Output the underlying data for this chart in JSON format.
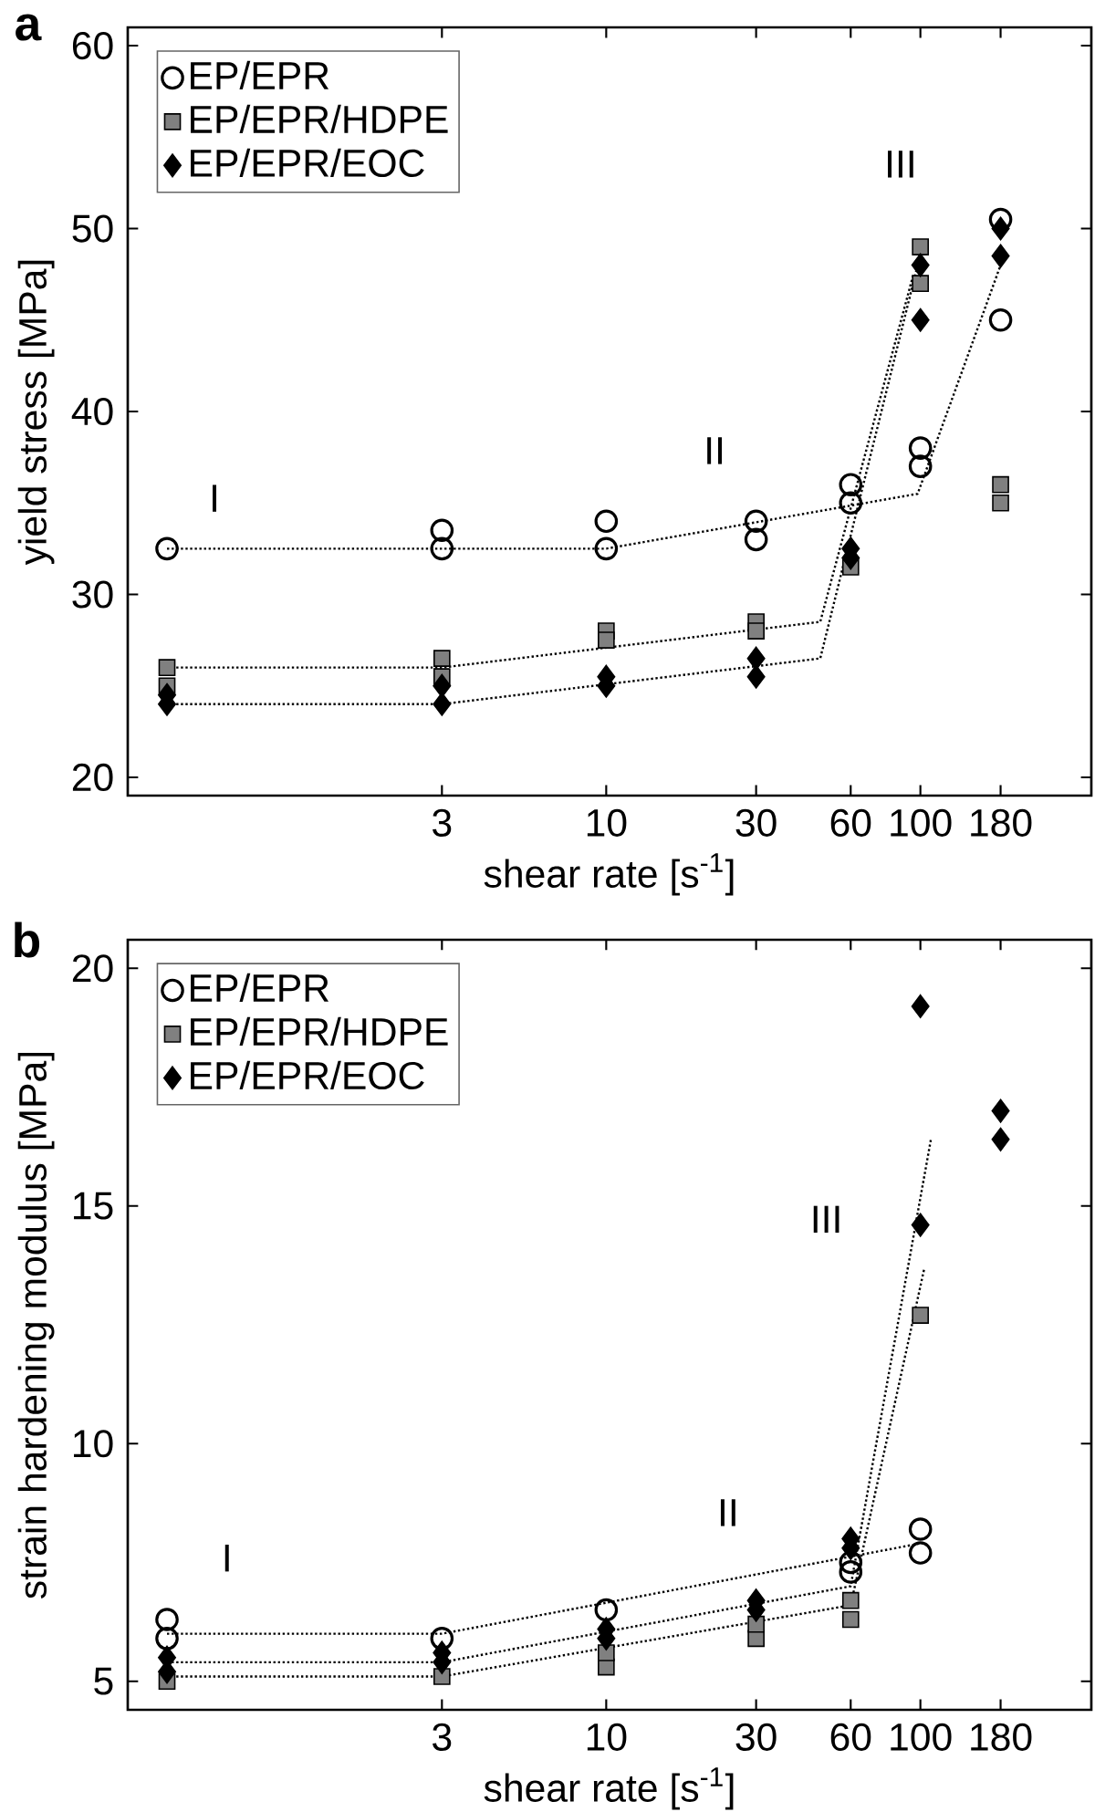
{
  "chart_data": [
    {
      "type": "scatter",
      "title": "a",
      "xlabel": "shear rate [s$^{-1}$]",
      "ylabel": "yield stress [MPa]",
      "log": "x",
      "xlim": [
        0.3,
        350
      ],
      "xticks": [
        3,
        10,
        30,
        60,
        100,
        180
      ],
      "ylim": [
        19,
        61
      ],
      "yticks": [
        20,
        30,
        40,
        50,
        60
      ],
      "grid": false,
      "legend": "top left",
      "annotations": [
        "I",
        "II",
        "III"
      ],
      "series": [
        {
          "name": "EP/EPR",
          "color": "#000000",
          "marker": "circle",
          "x": [
            0.4,
            3,
            3,
            10,
            10,
            30,
            30,
            60,
            60,
            100,
            100,
            180,
            180
          ],
          "values": [
            32.5,
            33.5,
            32.5,
            34,
            32.5,
            34,
            33,
            36,
            35,
            38,
            37,
            50.5,
            45
          ]
        },
        {
          "name": "EP/EPR/HDPE",
          "color": "#808080",
          "marker": "square",
          "x": [
            0.4,
            0.4,
            3,
            3,
            10,
            10,
            30,
            30,
            60,
            100,
            100,
            180,
            180
          ],
          "values": [
            26,
            25,
            26.5,
            25.5,
            28,
            27.5,
            28.5,
            28,
            31.5,
            49,
            47,
            36,
            35
          ]
        },
        {
          "name": "EP/EPR/EOC",
          "color": "#000000",
          "marker": "diamond",
          "x": [
            0.4,
            0.4,
            3,
            3,
            10,
            10,
            30,
            30,
            60,
            60,
            100,
            100,
            180,
            180
          ],
          "values": [
            24,
            24.5,
            24,
            25,
            25.5,
            25,
            26.5,
            25.5,
            32.5,
            32,
            48,
            45,
            50,
            48.5
          ]
        },
        {
          "type": "line",
          "color": "#000000",
          "marker": "none",
          "line_style": "dotted",
          "x": [
            0.4,
            10,
            98,
            180
          ],
          "values": [
            32.5,
            32.5,
            35.5,
            48
          ]
        },
        {
          "type": "line",
          "color": "#000000",
          "marker": "none",
          "line_style": "dotted",
          "x": [
            0.4,
            3,
            48,
            95
          ],
          "values": [
            26,
            26,
            28.5,
            47.5
          ]
        },
        {
          "type": "line",
          "color": "#000000",
          "marker": "none",
          "line_style": "dotted",
          "x": [
            0.4,
            3,
            48,
            98
          ],
          "values": [
            24,
            24,
            26.5,
            48
          ]
        }
      ]
    },
    {
      "type": "scatter",
      "title": "b",
      "xlabel": "shear rate [s$^{-1}$]",
      "ylabel": "strain hardening modulus [MPa]",
      "log": "x",
      "xlim": [
        0.3,
        350
      ],
      "xticks": [
        3,
        10,
        30,
        60,
        100,
        180
      ],
      "ylim": [
        4.4,
        20.6
      ],
      "yticks": [
        5,
        10,
        15,
        20
      ],
      "grid": false,
      "legend": "top left",
      "annotations": [
        "I",
        "II",
        "III"
      ],
      "series": [
        {
          "name": "EP/EPR",
          "color": "#000000",
          "marker": "circle",
          "x": [
            0.4,
            0.4,
            3,
            10,
            60,
            60,
            100,
            100
          ],
          "values": [
            6.3,
            5.9,
            5.9,
            6.5,
            7.5,
            7.3,
            8.2,
            7.7
          ]
        },
        {
          "name": "EP/EPR/HDPE",
          "color": "#808080",
          "marker": "square",
          "x": [
            0.4,
            3,
            10,
            10,
            30,
            30,
            60,
            60,
            100
          ],
          "values": [
            5.0,
            5.1,
            5.3,
            5.6,
            5.9,
            6.2,
            6.3,
            6.7,
            12.7
          ]
        },
        {
          "name": "EP/EPR/EOC",
          "color": "#000000",
          "marker": "diamond",
          "x": [
            0.4,
            0.4,
            3,
            3,
            10,
            10,
            30,
            30,
            60,
            60,
            100,
            100,
            180,
            180
          ],
          "values": [
            5.5,
            5.2,
            5.4,
            5.6,
            6.1,
            5.9,
            6.7,
            6.5,
            8.0,
            7.8,
            19.2,
            14.6,
            17.0,
            16.4
          ]
        },
        {
          "type": "line",
          "color": "#000000",
          "marker": "none",
          "line_style": "dotted",
          "x": [
            0.4,
            3,
            100
          ],
          "values": [
            6.0,
            6.0,
            7.9
          ]
        },
        {
          "type": "line",
          "color": "#000000",
          "marker": "none",
          "line_style": "dotted",
          "x": [
            0.4,
            3,
            60,
            103
          ],
          "values": [
            5.1,
            5.1,
            6.6,
            13.7
          ]
        },
        {
          "type": "line",
          "color": "#000000",
          "marker": "none",
          "line_style": "dotted",
          "x": [
            0.4,
            3,
            60,
            108
          ],
          "values": [
            5.4,
            5.4,
            7.0,
            16.4
          ]
        }
      ]
    }
  ]
}
